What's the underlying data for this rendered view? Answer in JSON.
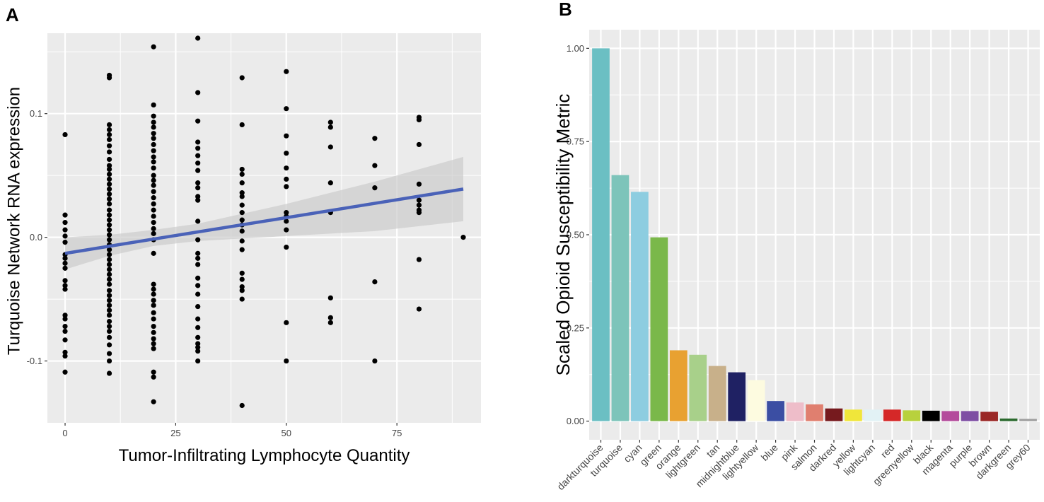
{
  "panels": {
    "a_label": "A",
    "b_label": "B"
  },
  "chart_data": [
    {
      "type": "scatter",
      "panel": "A",
      "title": "",
      "xlabel": "Tumor-Infiltrating Lymphocyte Quantity",
      "ylabel": "Turquoise Network RNA expression",
      "xlim": [
        -4,
        94
      ],
      "ylim": [
        -0.15,
        0.165
      ],
      "x_ticks": [
        0,
        25,
        50,
        75
      ],
      "x_tick_labels": [
        "0",
        "25",
        "50",
        "75"
      ],
      "y_ticks": [
        -0.1,
        0.0,
        0.1
      ],
      "y_tick_labels": [
        "-0.1",
        "0.0",
        "0.1"
      ],
      "grid": true,
      "colors": {
        "panel_bg": "#ebebeb",
        "grid": "#ffffff",
        "points": "#000000",
        "fit_line": "#4a62b8",
        "ribbon": "#cccccc"
      },
      "fit_line": {
        "x": [
          0,
          90
        ],
        "y": [
          -0.013,
          0.039
        ]
      },
      "confidence_band": {
        "x": [
          0,
          10,
          20,
          30,
          40,
          50,
          60,
          70,
          80,
          90
        ],
        "lower": [
          -0.026,
          -0.015,
          -0.007,
          -0.003,
          -0.001,
          0.001,
          0.003,
          0.005,
          0.009,
          0.013
        ],
        "upper": [
          0.0,
          0.002,
          0.006,
          0.011,
          0.019,
          0.027,
          0.036,
          0.045,
          0.055,
          0.065
        ]
      },
      "points": [
        {
          "x": 0,
          "y": 0.083
        },
        {
          "x": 0,
          "y": 0.018
        },
        {
          "x": 0,
          "y": 0.012
        },
        {
          "x": 0,
          "y": 0.006
        },
        {
          "x": 0,
          "y": 0.001
        },
        {
          "x": 0,
          "y": -0.004
        },
        {
          "x": 0,
          "y": -0.014
        },
        {
          "x": 0,
          "y": -0.017
        },
        {
          "x": 0,
          "y": -0.021
        },
        {
          "x": 0,
          "y": -0.025
        },
        {
          "x": 0,
          "y": -0.035
        },
        {
          "x": 0,
          "y": -0.039
        },
        {
          "x": 0,
          "y": -0.042
        },
        {
          "x": 0,
          "y": -0.063
        },
        {
          "x": 0,
          "y": -0.066
        },
        {
          "x": 0,
          "y": -0.072
        },
        {
          "x": 0,
          "y": -0.076
        },
        {
          "x": 0,
          "y": -0.083
        },
        {
          "x": 0,
          "y": -0.093
        },
        {
          "x": 0,
          "y": -0.096
        },
        {
          "x": 0,
          "y": -0.109
        },
        {
          "x": 10,
          "y": 0.131
        },
        {
          "x": 10,
          "y": 0.129
        },
        {
          "x": 10,
          "y": 0.091
        },
        {
          "x": 10,
          "y": 0.087
        },
        {
          "x": 10,
          "y": 0.083
        },
        {
          "x": 10,
          "y": 0.079
        },
        {
          "x": 10,
          "y": 0.074
        },
        {
          "x": 10,
          "y": 0.069
        },
        {
          "x": 10,
          "y": 0.063
        },
        {
          "x": 10,
          "y": 0.058
        },
        {
          "x": 10,
          "y": 0.055
        },
        {
          "x": 10,
          "y": 0.051
        },
        {
          "x": 10,
          "y": 0.047
        },
        {
          "x": 10,
          "y": 0.043
        },
        {
          "x": 10,
          "y": 0.039
        },
        {
          "x": 10,
          "y": 0.035
        },
        {
          "x": 10,
          "y": 0.031
        },
        {
          "x": 10,
          "y": 0.027
        },
        {
          "x": 10,
          "y": 0.022
        },
        {
          "x": 10,
          "y": 0.018
        },
        {
          "x": 10,
          "y": 0.014
        },
        {
          "x": 10,
          "y": 0.01
        },
        {
          "x": 10,
          "y": 0.006
        },
        {
          "x": 10,
          "y": 0.002
        },
        {
          "x": 10,
          "y": -0.002
        },
        {
          "x": 10,
          "y": -0.006
        },
        {
          "x": 10,
          "y": -0.01
        },
        {
          "x": 10,
          "y": -0.014
        },
        {
          "x": 10,
          "y": -0.018
        },
        {
          "x": 10,
          "y": -0.022
        },
        {
          "x": 10,
          "y": -0.026
        },
        {
          "x": 10,
          "y": -0.03
        },
        {
          "x": 10,
          "y": -0.034
        },
        {
          "x": 10,
          "y": -0.038
        },
        {
          "x": 10,
          "y": -0.043
        },
        {
          "x": 10,
          "y": -0.047
        },
        {
          "x": 10,
          "y": -0.051
        },
        {
          "x": 10,
          "y": -0.055
        },
        {
          "x": 10,
          "y": -0.059
        },
        {
          "x": 10,
          "y": -0.063
        },
        {
          "x": 10,
          "y": -0.068
        },
        {
          "x": 10,
          "y": -0.072
        },
        {
          "x": 10,
          "y": -0.076
        },
        {
          "x": 10,
          "y": -0.081
        },
        {
          "x": 10,
          "y": -0.087
        },
        {
          "x": 10,
          "y": -0.094
        },
        {
          "x": 10,
          "y": -0.1
        },
        {
          "x": 10,
          "y": -0.11
        },
        {
          "x": 20,
          "y": 0.154
        },
        {
          "x": 20,
          "y": 0.107
        },
        {
          "x": 20,
          "y": 0.098
        },
        {
          "x": 20,
          "y": 0.093
        },
        {
          "x": 20,
          "y": 0.089
        },
        {
          "x": 20,
          "y": 0.084
        },
        {
          "x": 20,
          "y": 0.08
        },
        {
          "x": 20,
          "y": 0.075
        },
        {
          "x": 20,
          "y": 0.07
        },
        {
          "x": 20,
          "y": 0.065
        },
        {
          "x": 20,
          "y": 0.061
        },
        {
          "x": 20,
          "y": 0.056
        },
        {
          "x": 20,
          "y": 0.05
        },
        {
          "x": 20,
          "y": 0.046
        },
        {
          "x": 20,
          "y": 0.042
        },
        {
          "x": 20,
          "y": 0.037
        },
        {
          "x": 20,
          "y": 0.032
        },
        {
          "x": 20,
          "y": 0.027
        },
        {
          "x": 20,
          "y": 0.022
        },
        {
          "x": 20,
          "y": 0.017
        },
        {
          "x": 20,
          "y": 0.012
        },
        {
          "x": 20,
          "y": 0.007
        },
        {
          "x": 20,
          "y": 0.003
        },
        {
          "x": 20,
          "y": -0.002
        },
        {
          "x": 20,
          "y": -0.013
        },
        {
          "x": 20,
          "y": -0.038
        },
        {
          "x": 20,
          "y": -0.042
        },
        {
          "x": 20,
          "y": -0.046
        },
        {
          "x": 20,
          "y": -0.051
        },
        {
          "x": 20,
          "y": -0.055
        },
        {
          "x": 20,
          "y": -0.061
        },
        {
          "x": 20,
          "y": -0.066
        },
        {
          "x": 20,
          "y": -0.072
        },
        {
          "x": 20,
          "y": -0.077
        },
        {
          "x": 20,
          "y": -0.082
        },
        {
          "x": 20,
          "y": -0.086
        },
        {
          "x": 20,
          "y": -0.09
        },
        {
          "x": 20,
          "y": -0.109
        },
        {
          "x": 20,
          "y": -0.113
        },
        {
          "x": 20,
          "y": -0.133
        },
        {
          "x": 30,
          "y": 0.161
        },
        {
          "x": 30,
          "y": 0.117
        },
        {
          "x": 30,
          "y": 0.094
        },
        {
          "x": 30,
          "y": 0.077
        },
        {
          "x": 30,
          "y": 0.072
        },
        {
          "x": 30,
          "y": 0.066
        },
        {
          "x": 30,
          "y": 0.06
        },
        {
          "x": 30,
          "y": 0.054
        },
        {
          "x": 30,
          "y": 0.044
        },
        {
          "x": 30,
          "y": 0.04
        },
        {
          "x": 30,
          "y": 0.033
        },
        {
          "x": 30,
          "y": 0.03
        },
        {
          "x": 30,
          "y": 0.013
        },
        {
          "x": 30,
          "y": -0.002
        },
        {
          "x": 30,
          "y": -0.013
        },
        {
          "x": 30,
          "y": -0.017
        },
        {
          "x": 30,
          "y": -0.022
        },
        {
          "x": 30,
          "y": -0.033
        },
        {
          "x": 30,
          "y": -0.039
        },
        {
          "x": 30,
          "y": -0.046
        },
        {
          "x": 30,
          "y": -0.056
        },
        {
          "x": 30,
          "y": -0.066
        },
        {
          "x": 30,
          "y": -0.073
        },
        {
          "x": 30,
          "y": -0.081
        },
        {
          "x": 30,
          "y": -0.086
        },
        {
          "x": 30,
          "y": -0.089
        },
        {
          "x": 30,
          "y": -0.092
        },
        {
          "x": 30,
          "y": -0.1
        },
        {
          "x": 40,
          "y": 0.129
        },
        {
          "x": 40,
          "y": 0.091
        },
        {
          "x": 40,
          "y": 0.055
        },
        {
          "x": 40,
          "y": 0.051
        },
        {
          "x": 40,
          "y": 0.044
        },
        {
          "x": 40,
          "y": 0.036
        },
        {
          "x": 40,
          "y": 0.033
        },
        {
          "x": 40,
          "y": 0.026
        },
        {
          "x": 40,
          "y": 0.02
        },
        {
          "x": 40,
          "y": 0.014
        },
        {
          "x": 40,
          "y": 0.01
        },
        {
          "x": 40,
          "y": 0.005
        },
        {
          "x": 40,
          "y": -0.003
        },
        {
          "x": 40,
          "y": -0.01
        },
        {
          "x": 40,
          "y": -0.029
        },
        {
          "x": 40,
          "y": -0.034
        },
        {
          "x": 40,
          "y": -0.04
        },
        {
          "x": 40,
          "y": -0.043
        },
        {
          "x": 40,
          "y": -0.05
        },
        {
          "x": 40,
          "y": -0.136
        },
        {
          "x": 50,
          "y": 0.134
        },
        {
          "x": 50,
          "y": 0.104
        },
        {
          "x": 50,
          "y": 0.082
        },
        {
          "x": 50,
          "y": 0.068
        },
        {
          "x": 50,
          "y": 0.056
        },
        {
          "x": 50,
          "y": 0.047
        },
        {
          "x": 50,
          "y": 0.041
        },
        {
          "x": 50,
          "y": 0.02
        },
        {
          "x": 50,
          "y": 0.017
        },
        {
          "x": 50,
          "y": 0.013
        },
        {
          "x": 50,
          "y": 0.006
        },
        {
          "x": 50,
          "y": -0.008
        },
        {
          "x": 50,
          "y": -0.069
        },
        {
          "x": 50,
          "y": -0.1
        },
        {
          "x": 60,
          "y": 0.093
        },
        {
          "x": 60,
          "y": 0.089
        },
        {
          "x": 60,
          "y": 0.073
        },
        {
          "x": 60,
          "y": 0.044
        },
        {
          "x": 60,
          "y": 0.02
        },
        {
          "x": 60,
          "y": -0.049
        },
        {
          "x": 60,
          "y": -0.065
        },
        {
          "x": 60,
          "y": -0.069
        },
        {
          "x": 70,
          "y": 0.08
        },
        {
          "x": 70,
          "y": 0.058
        },
        {
          "x": 70,
          "y": 0.04
        },
        {
          "x": 70,
          "y": -0.036
        },
        {
          "x": 70,
          "y": -0.1
        },
        {
          "x": 80,
          "y": 0.097
        },
        {
          "x": 80,
          "y": 0.095
        },
        {
          "x": 80,
          "y": 0.075
        },
        {
          "x": 80,
          "y": 0.043
        },
        {
          "x": 80,
          "y": 0.03
        },
        {
          "x": 80,
          "y": 0.026
        },
        {
          "x": 80,
          "y": 0.022
        },
        {
          "x": 80,
          "y": 0.02
        },
        {
          "x": 80,
          "y": -0.018
        },
        {
          "x": 80,
          "y": -0.058
        },
        {
          "x": 90,
          "y": 0.0
        }
      ]
    },
    {
      "type": "bar",
      "panel": "B",
      "title": "",
      "xlabel": "",
      "ylabel": "Scaled Opioid Susceptibility Metric",
      "ylim": [
        -0.05,
        1.05
      ],
      "y_ticks": [
        0,
        0.25,
        0.5,
        0.75,
        1.0
      ],
      "y_tick_labels": [
        "0.00",
        "0.25",
        "0.50",
        "0.75",
        "1.00"
      ],
      "grid": true,
      "colors": {
        "panel_bg": "#ebebeb",
        "grid": "#ffffff"
      },
      "categories": [
        "darkturquoise",
        "turquoise",
        "cyan",
        "green",
        "orange",
        "lightgreen",
        "tan",
        "midnightblue",
        "lightyellow",
        "blue",
        "pink",
        "salmon",
        "darkred",
        "yellow",
        "lightcyan",
        "red",
        "greenyellow",
        "black",
        "magenta",
        "purple",
        "brown",
        "darkgreen",
        "grey60"
      ],
      "values": [
        1.0,
        0.66,
        0.615,
        0.493,
        0.19,
        0.178,
        0.148,
        0.131,
        0.11,
        0.054,
        0.05,
        0.045,
        0.034,
        0.031,
        0.031,
        0.031,
        0.029,
        0.028,
        0.027,
        0.027,
        0.025,
        0.007,
        0.006
      ],
      "bar_colors": [
        "#6bbfc3",
        "#7dc4ba",
        "#8dcde0",
        "#7ab84a",
        "#e8a131",
        "#a8d08a",
        "#c8b08a",
        "#1f2163",
        "#fdfbe0",
        "#3b4ea3",
        "#eebdc9",
        "#e07f6f",
        "#761a1e",
        "#f0e63a",
        "#e2f2f5",
        "#d52828",
        "#b8d13d",
        "#000000",
        "#b44c9c",
        "#7e4ea3",
        "#9a2726",
        "#2b6a2e",
        "#9e9e9e"
      ]
    }
  ]
}
